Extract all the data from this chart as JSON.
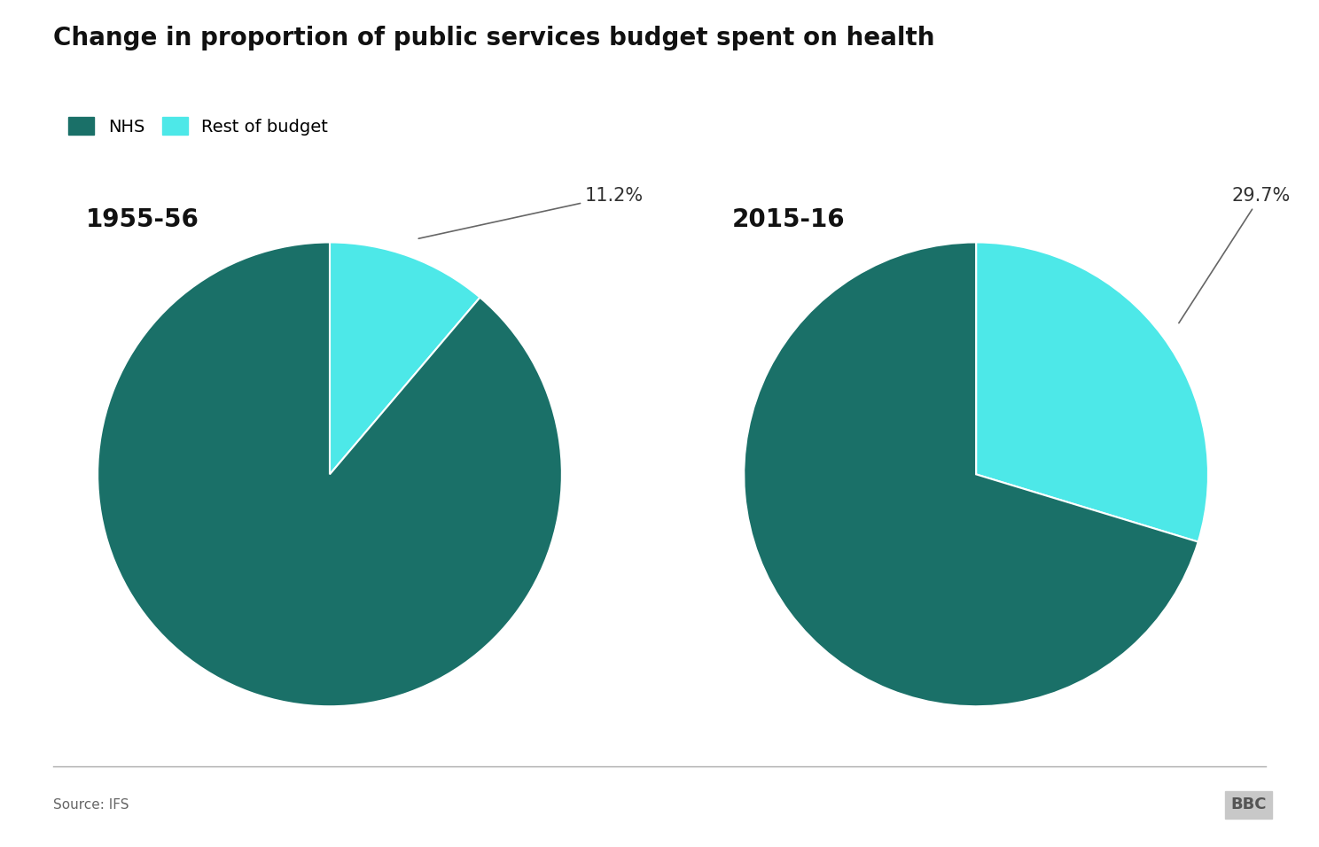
{
  "title": "Change in proportion of public services budget spent on health",
  "background_color": "#ffffff",
  "pie1": {
    "label": "1955-56",
    "nhs_pct": 88.8,
    "rest_pct": 11.2,
    "annotation": "11.2%"
  },
  "pie2": {
    "label": "2015-16",
    "nhs_pct": 70.3,
    "rest_pct": 29.7,
    "annotation": "29.7%"
  },
  "colors": {
    "nhs": "#1a7068",
    "rest": "#4de8e8"
  },
  "legend_labels": [
    "NHS",
    "Rest of budget"
  ],
  "source_text": "Source: IFS",
  "bbc_text": "BBC",
  "title_fontsize": 20,
  "label_fontsize": 20,
  "annot_fontsize": 15,
  "legend_fontsize": 14,
  "source_fontsize": 11
}
